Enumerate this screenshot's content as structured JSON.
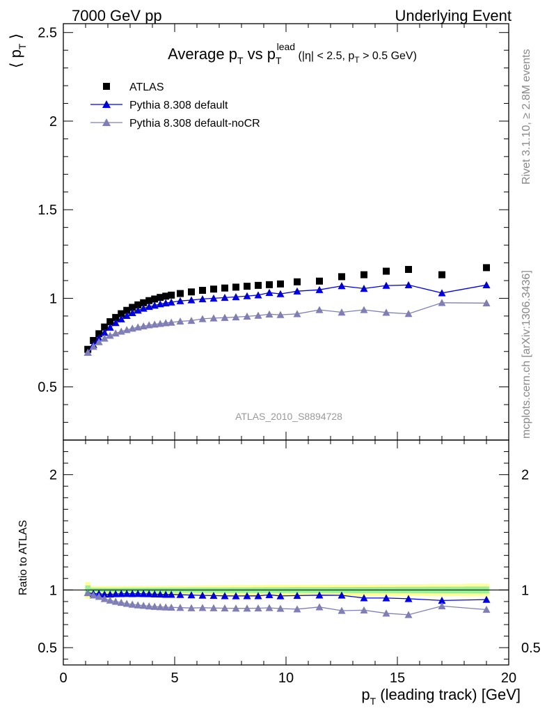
{
  "header": {
    "left": "7000 GeV pp",
    "right": "Underlying Event"
  },
  "side_labels": {
    "rivet": "Rivet 3.1.10, ≥ 2.8M events",
    "source": "mcplots.cern.ch [arXiv:1306.3436]"
  },
  "analysis_label": "ATLAS_2010_S8894728",
  "title": {
    "main": "Average p",
    "main_sub": "T",
    "mid": " vs p",
    "mid_sub": "T",
    "mid_sup": "lead",
    "cut_open": " (|η| < 2.5, p",
    "cut_sub": "T",
    "cut_close": " > 0.5 GeV)"
  },
  "axes": {
    "ylabel_main": "⟨ p",
    "ylabel_main_sub": "T",
    "ylabel_main_close": " ⟩",
    "ylabel_ratio": "Ratio to ATLAS",
    "xlabel": "p",
    "xlabel_sub": "T",
    "xlabel_rest": " (leading track) [GeV]"
  },
  "chart_data": {
    "type": "scatter",
    "x": [
      1.1,
      1.35,
      1.6,
      1.85,
      2.1,
      2.35,
      2.6,
      2.85,
      3.1,
      3.35,
      3.6,
      3.85,
      4.1,
      4.35,
      4.6,
      4.85,
      5.25,
      5.75,
      6.25,
      6.75,
      7.25,
      7.75,
      8.25,
      8.75,
      9.25,
      9.75,
      10.5,
      11.5,
      12.5,
      13.5,
      14.5,
      15.5,
      17.0,
      19.0
    ],
    "xlim": [
      0,
      20
    ],
    "xticks": [
      0,
      5,
      10,
      15,
      20
    ],
    "main_ylim": [
      0.2,
      2.55
    ],
    "main_yticks": [
      0.5,
      1,
      1.5,
      2,
      2.5
    ],
    "main_ytick_labels": [
      "0.5",
      "1",
      "1.5",
      "2",
      "2.5"
    ],
    "ratio_ylim": [
      0.35,
      2.3
    ],
    "ratio_yticks": [
      0.5,
      1,
      2
    ],
    "ratio_ytick_labels": [
      "0.5",
      "1",
      "2"
    ],
    "legend_position": "top-left",
    "series": [
      {
        "name": "ATLAS",
        "marker": "square",
        "color": "#000000",
        "connect": false,
        "values": [
          0.712,
          0.762,
          0.8,
          0.838,
          0.868,
          0.892,
          0.913,
          0.932,
          0.949,
          0.963,
          0.975,
          0.987,
          0.996,
          1.005,
          1.012,
          1.018,
          1.027,
          1.036,
          1.045,
          1.052,
          1.058,
          1.063,
          1.068,
          1.073,
          1.077,
          1.081,
          1.093,
          1.097,
          1.122,
          1.133,
          1.153,
          1.163,
          1.133,
          1.173
        ]
      },
      {
        "name": "Pythia 8.308 default",
        "marker": "triangle",
        "color": "#0000dd",
        "connect": true,
        "values": [
          0.695,
          0.738,
          0.775,
          0.807,
          0.836,
          0.862,
          0.883,
          0.902,
          0.918,
          0.932,
          0.943,
          0.953,
          0.96,
          0.968,
          0.973,
          0.978,
          0.985,
          0.99,
          0.996,
          1.0,
          1.004,
          1.008,
          1.013,
          1.018,
          1.032,
          1.025,
          1.04,
          1.048,
          1.07,
          1.055,
          1.072,
          1.075,
          1.03,
          1.075
        ],
        "ratio": [
          0.976,
          0.969,
          0.969,
          0.963,
          0.963,
          0.966,
          0.967,
          0.968,
          0.967,
          0.968,
          0.967,
          0.966,
          0.964,
          0.963,
          0.961,
          0.961,
          0.959,
          0.956,
          0.953,
          0.951,
          0.949,
          0.948,
          0.949,
          0.949,
          0.958,
          0.948,
          0.951,
          0.955,
          0.954,
          0.931,
          0.93,
          0.924,
          0.909,
          0.917
        ]
      },
      {
        "name": "Pythia 8.308 default-noCR",
        "marker": "triangle",
        "color": "#7f7fb5",
        "connect": true,
        "values": [
          0.694,
          0.728,
          0.754,
          0.774,
          0.79,
          0.803,
          0.813,
          0.822,
          0.83,
          0.837,
          0.843,
          0.849,
          0.853,
          0.857,
          0.861,
          0.864,
          0.87,
          0.874,
          0.884,
          0.888,
          0.891,
          0.894,
          0.898,
          0.903,
          0.91,
          0.907,
          0.912,
          0.935,
          0.921,
          0.935,
          0.92,
          0.913,
          0.975,
          0.973
        ],
        "ratio": [
          0.975,
          0.955,
          0.943,
          0.924,
          0.91,
          0.9,
          0.891,
          0.882,
          0.875,
          0.869,
          0.865,
          0.86,
          0.856,
          0.853,
          0.851,
          0.849,
          0.847,
          0.844,
          0.846,
          0.844,
          0.842,
          0.841,
          0.841,
          0.842,
          0.845,
          0.839,
          0.834,
          0.852,
          0.821,
          0.825,
          0.798,
          0.785,
          0.861,
          0.83
        ]
      }
    ]
  }
}
